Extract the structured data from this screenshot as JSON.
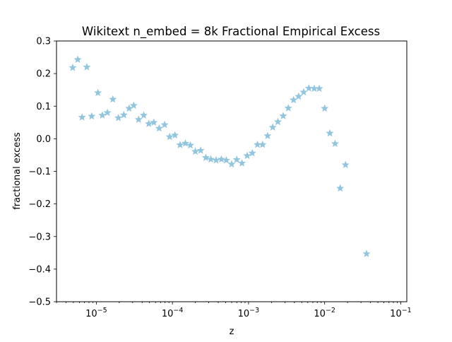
{
  "chart_data": {
    "type": "scatter",
    "title": "Wikitext n_embed = 8k Fractional Empirical Excess",
    "xlabel": "z",
    "ylabel": "fractional excess",
    "xscale": "log",
    "xlim": [
      3e-06,
      0.12
    ],
    "ylim": [
      -0.5,
      0.3
    ],
    "grid": false,
    "marker": "star",
    "marker_color": "#92c5de",
    "x_ticks": [
      {
        "value": 1e-05,
        "base": "10",
        "exp": "−5"
      },
      {
        "value": 0.0001,
        "base": "10",
        "exp": "−4"
      },
      {
        "value": 0.001,
        "base": "10",
        "exp": "−3"
      },
      {
        "value": 0.01,
        "base": "10",
        "exp": "−2"
      },
      {
        "value": 0.1,
        "base": "10",
        "exp": "−1"
      }
    ],
    "y_ticks": [
      {
        "value": 0.3,
        "label": "0.3"
      },
      {
        "value": 0.2,
        "label": "0.2"
      },
      {
        "value": 0.1,
        "label": "0.1"
      },
      {
        "value": 0.0,
        "label": "0.0"
      },
      {
        "value": -0.1,
        "label": "−0.1"
      },
      {
        "value": -0.2,
        "label": "−0.2"
      },
      {
        "value": -0.3,
        "label": "−0.3"
      },
      {
        "value": -0.4,
        "label": "−0.4"
      },
      {
        "value": -0.5,
        "label": "−0.5"
      }
    ],
    "points": [
      {
        "x": 4.9e-06,
        "y": 0.218
      },
      {
        "x": 5.7e-06,
        "y": 0.243
      },
      {
        "x": 6.5e-06,
        "y": 0.066
      },
      {
        "x": 7.5e-06,
        "y": 0.22
      },
      {
        "x": 8.7e-06,
        "y": 0.069
      },
      {
        "x": 1.05e-05,
        "y": 0.141
      },
      {
        "x": 1.2e-05,
        "y": 0.072
      },
      {
        "x": 1.4e-05,
        "y": 0.08
      },
      {
        "x": 1.65e-05,
        "y": 0.121
      },
      {
        "x": 1.95e-05,
        "y": 0.064
      },
      {
        "x": 2.3e-05,
        "y": 0.073
      },
      {
        "x": 2.7e-05,
        "y": 0.093
      },
      {
        "x": 3.1e-05,
        "y": 0.102
      },
      {
        "x": 3.6e-05,
        "y": 0.059
      },
      {
        "x": 4.2e-05,
        "y": 0.072
      },
      {
        "x": 4.9e-05,
        "y": 0.046
      },
      {
        "x": 5.7e-05,
        "y": 0.05
      },
      {
        "x": 6.7e-05,
        "y": 0.032
      },
      {
        "x": 7.9e-05,
        "y": 0.043
      },
      {
        "x": 9.2e-05,
        "y": 0.006
      },
      {
        "x": 0.000108,
        "y": 0.011
      },
      {
        "x": 0.000126,
        "y": -0.019
      },
      {
        "x": 0.000148,
        "y": -0.014
      },
      {
        "x": 0.000172,
        "y": -0.02
      },
      {
        "x": 0.0002,
        "y": -0.039
      },
      {
        "x": 0.000235,
        "y": -0.036
      },
      {
        "x": 0.000275,
        "y": -0.058
      },
      {
        "x": 0.00032,
        "y": -0.063
      },
      {
        "x": 0.000375,
        "y": -0.066
      },
      {
        "x": 0.00044,
        "y": -0.063
      },
      {
        "x": 0.00051,
        "y": -0.066
      },
      {
        "x": 0.0006,
        "y": -0.078
      },
      {
        "x": 0.0007,
        "y": -0.064
      },
      {
        "x": 0.00082,
        "y": -0.075
      },
      {
        "x": 0.00096,
        "y": -0.052
      },
      {
        "x": 0.00112,
        "y": -0.044
      },
      {
        "x": 0.00131,
        "y": -0.018
      },
      {
        "x": 0.00153,
        "y": -0.018
      },
      {
        "x": 0.00178,
        "y": 0.009
      },
      {
        "x": 0.00208,
        "y": 0.035
      },
      {
        "x": 0.00243,
        "y": 0.052
      },
      {
        "x": 0.00285,
        "y": 0.07
      },
      {
        "x": 0.00333,
        "y": 0.094
      },
      {
        "x": 0.0039,
        "y": 0.119
      },
      {
        "x": 0.00455,
        "y": 0.13
      },
      {
        "x": 0.0053,
        "y": 0.143
      },
      {
        "x": 0.0062,
        "y": 0.155
      },
      {
        "x": 0.0073,
        "y": 0.154
      },
      {
        "x": 0.0085,
        "y": 0.154
      },
      {
        "x": 0.01,
        "y": 0.093
      },
      {
        "x": 0.0117,
        "y": 0.017
      },
      {
        "x": 0.0137,
        "y": -0.015
      },
      {
        "x": 0.016,
        "y": -0.152
      },
      {
        "x": 0.0188,
        "y": -0.08
      },
      {
        "x": 0.0355,
        "y": -0.353
      }
    ]
  }
}
